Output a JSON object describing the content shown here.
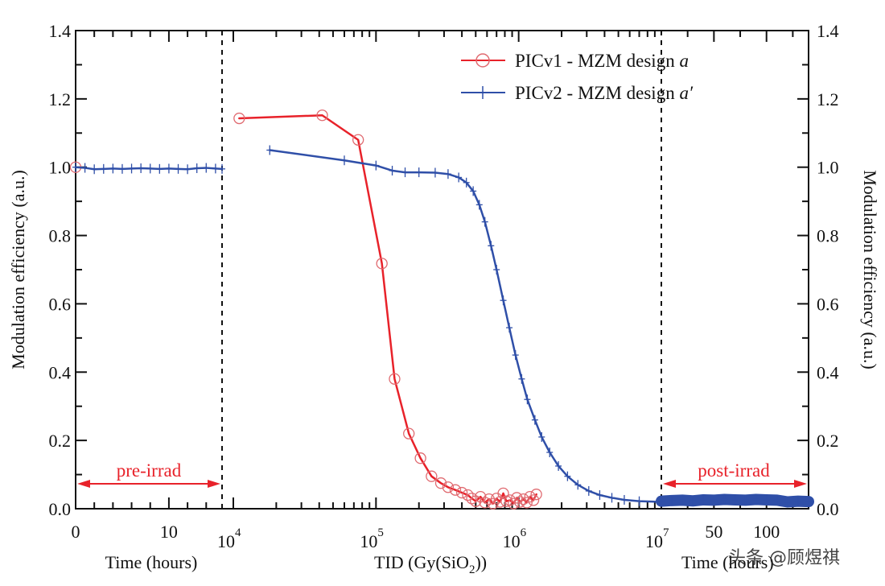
{
  "chart_data": {
    "type": "line",
    "title": "",
    "ylabel": "Modulation efficiency (a.u.)",
    "ylabel_right": "Modulation efficiency (a.u.)",
    "ylim": [
      0,
      1.4
    ],
    "yticks": [
      0.0,
      0.2,
      0.4,
      0.6,
      0.8,
      1.0,
      1.2,
      1.4
    ],
    "ytick_labels": [
      "0.0",
      "0.2",
      "0.4",
      "0.6",
      "0.8",
      "1.0",
      "1.2",
      "1.4"
    ],
    "grid": false,
    "legend_position": "top-right",
    "x_segments": [
      {
        "name": "pre-irradiation time",
        "xlabel": "Time (hours)",
        "scale": "linear",
        "xlim": [
          0,
          15.7
        ],
        "tick_labels": [
          {
            "value": 0,
            "label": "0"
          },
          {
            "value": 10,
            "label": "10"
          }
        ]
      },
      {
        "name": "irradiation dose",
        "xlabel": "TID (Gy(SiO2))",
        "xlabel_main": "TID (Gy(SiO",
        "xlabel_sub": "2",
        "xlabel_tail": "))",
        "scale": "log",
        "xlim": [
          8500,
          10000000
        ],
        "tick_labels": [
          {
            "value": 10000,
            "base": "10",
            "exp": "4"
          },
          {
            "value": 100000,
            "base": "10",
            "exp": "5"
          },
          {
            "value": 1000000,
            "base": "10",
            "exp": "6"
          },
          {
            "value": 10000000,
            "base": "10",
            "exp": "7"
          }
        ]
      },
      {
        "name": "post-irradiation time",
        "xlabel": "Time (hours)",
        "scale": "linear",
        "xlim": [
          0,
          140
        ],
        "tick_labels": [
          {
            "value": 50,
            "label": "50"
          },
          {
            "value": 100,
            "label": "100"
          }
        ]
      }
    ],
    "annotations": [
      {
        "text": "pre-irrad",
        "segment": 0,
        "color": "#e8222a"
      },
      {
        "text": "post-irrad",
        "segment": 2,
        "color": "#e8222a"
      }
    ],
    "series": [
      {
        "name": "PICv1 - MZM design a",
        "legend_main": "PICv1 - MZM design ",
        "legend_italic": "a",
        "color": "#e8222a",
        "marker": "circle",
        "pre": [
          [
            0,
            1.0
          ]
        ],
        "tid": [
          [
            11000,
            1.143
          ],
          [
            42000,
            1.152
          ],
          [
            75000,
            1.08
          ],
          [
            110000,
            0.718
          ],
          [
            135000,
            0.38
          ],
          [
            170000,
            0.22
          ],
          [
            205000,
            0.148
          ],
          [
            245000,
            0.095
          ],
          [
            285000,
            0.075
          ],
          [
            320000,
            0.063
          ],
          [
            360000,
            0.055
          ],
          [
            400000,
            0.047
          ],
          [
            440000,
            0.04
          ],
          [
            470000,
            0.03
          ],
          [
            500000,
            0.022
          ],
          [
            540000,
            0.035
          ],
          [
            580000,
            0.018
          ],
          [
            620000,
            0.028
          ],
          [
            660000,
            0.015
          ],
          [
            700000,
            0.03
          ],
          [
            740000,
            0.02
          ],
          [
            780000,
            0.045
          ],
          [
            820000,
            0.022
          ],
          [
            870000,
            0.025
          ],
          [
            920000,
            0.015
          ],
          [
            970000,
            0.032
          ],
          [
            1020000,
            0.02
          ],
          [
            1080000,
            0.028
          ],
          [
            1140000,
            0.018
          ],
          [
            1200000,
            0.035
          ],
          [
            1270000,
            0.025
          ],
          [
            1330000,
            0.042
          ]
        ],
        "post": []
      },
      {
        "name": "PICv2 - MZM design a'",
        "legend_main": "PICv2 - MZM design ",
        "legend_italic": "a′",
        "color": "#2f4fa8",
        "marker": "plus",
        "pre": [
          [
            0,
            1.0
          ],
          [
            1,
            0.998
          ],
          [
            2,
            0.994
          ],
          [
            3,
            0.995
          ],
          [
            4,
            0.996
          ],
          [
            5,
            0.995
          ],
          [
            6,
            0.996
          ],
          [
            7,
            0.997
          ],
          [
            8,
            0.996
          ],
          [
            9,
            0.995
          ],
          [
            10,
            0.996
          ],
          [
            11,
            0.995
          ],
          [
            12,
            0.994
          ],
          [
            13,
            0.997
          ],
          [
            14,
            0.998
          ],
          [
            15,
            0.996
          ],
          [
            15.7,
            0.995
          ]
        ],
        "tid": [
          [
            18000,
            1.05
          ],
          [
            60000,
            1.02
          ],
          [
            100000,
            1.005
          ],
          [
            130000,
            0.99
          ],
          [
            160000,
            0.985
          ],
          [
            200000,
            0.985
          ],
          [
            260000,
            0.984
          ],
          [
            320000,
            0.98
          ],
          [
            380000,
            0.97
          ],
          [
            430000,
            0.955
          ],
          [
            480000,
            0.93
          ],
          [
            530000,
            0.89
          ],
          [
            580000,
            0.84
          ],
          [
            640000,
            0.77
          ],
          [
            700000,
            0.7
          ],
          [
            780000,
            0.61
          ],
          [
            860000,
            0.53
          ],
          [
            950000,
            0.45
          ],
          [
            1050000,
            0.38
          ],
          [
            1150000,
            0.32
          ],
          [
            1300000,
            0.26
          ],
          [
            1450000,
            0.21
          ],
          [
            1650000,
            0.165
          ],
          [
            1900000,
            0.125
          ],
          [
            2200000,
            0.095
          ],
          [
            2600000,
            0.07
          ],
          [
            3100000,
            0.052
          ],
          [
            3700000,
            0.04
          ],
          [
            4500000,
            0.032
          ],
          [
            5500000,
            0.026
          ],
          [
            7000000,
            0.022
          ],
          [
            10000000,
            0.02
          ]
        ],
        "post": [
          [
            0,
            0.022
          ],
          [
            10,
            0.024
          ],
          [
            20,
            0.025
          ],
          [
            30,
            0.023
          ],
          [
            40,
            0.026
          ],
          [
            50,
            0.025
          ],
          [
            60,
            0.027
          ],
          [
            70,
            0.026
          ],
          [
            80,
            0.025
          ],
          [
            90,
            0.027
          ],
          [
            100,
            0.026
          ],
          [
            110,
            0.025
          ],
          [
            120,
            0.02
          ],
          [
            130,
            0.022
          ],
          [
            140,
            0.021
          ]
        ]
      }
    ]
  },
  "watermark": "头条 @顾煜祺"
}
